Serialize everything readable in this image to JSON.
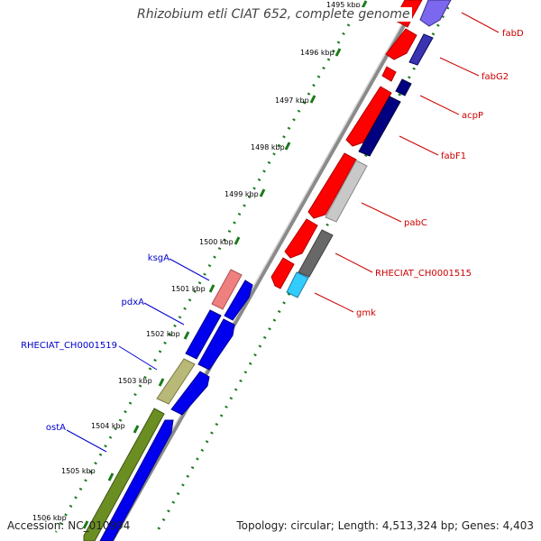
{
  "title": "Rhizobium etli CIAT 652, complete genome",
  "footer": {
    "accession": "Accession: NC_010994",
    "topology": "Topology: circular; Length: 4,513,324 bp; Genes: 4,403"
  },
  "scale_ticks": [
    "1495 kbp",
    "1496 kbp",
    "1497 kbp",
    "1498 kbp",
    "1499 kbp",
    "1500 kbp",
    "1501 kbp",
    "1502 kbp",
    "1503 kbp",
    "1504 kbp",
    "1505 kbp",
    "1506 kbp"
  ],
  "genes_right": [
    "fabD",
    "fabG2",
    "acpP",
    "fabF1",
    "pabC",
    "RHECIAT_CH0001515",
    "gmk"
  ],
  "genes_left": [
    "ksgA",
    "pdxA",
    "RHECIAT_CH0001519",
    "ostA"
  ],
  "colors": {
    "backbone": "#909090",
    "tick_green": "#1a7a1a",
    "gene_red": "#ff0000",
    "gene_blue": "#0000ee",
    "gene_navy": "#000080",
    "gene_lavender": "#7b68ee",
    "gene_gray_light": "#c8c8c8",
    "gene_gray_dark": "#686868",
    "gene_cyan": "#33ccff",
    "gene_pink": "#ee8080",
    "gene_khaki": "#b8b878",
    "gene_olive": "#6b8e23",
    "label_red": "#cc0000",
    "label_blue": "#0000cc"
  }
}
